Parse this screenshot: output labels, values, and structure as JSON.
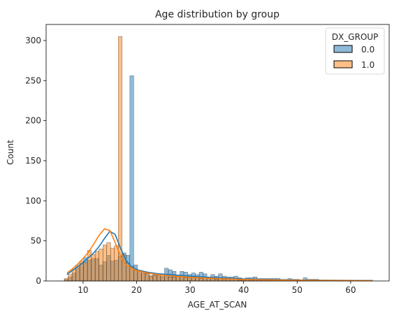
{
  "chart_data": {
    "type": "histogram",
    "title": "Age distribution by group",
    "xlabel": "AGE_AT_SCAN",
    "ylabel": "Count",
    "xlim": [
      3.1,
      67.2
    ],
    "ylim": [
      0,
      320
    ],
    "xticks": [
      10,
      20,
      30,
      40,
      50,
      60
    ],
    "yticks": [
      0,
      50,
      100,
      150,
      200,
      250,
      300
    ],
    "grid": false,
    "legend": {
      "title": "DX_GROUP",
      "placement": "top-right"
    },
    "bin_start": 6.5,
    "bin_width": 0.72,
    "series": [
      {
        "name": "0.0",
        "color": "#1f77b4",
        "fill": "#8fb9d9",
        "counts": [
          2,
          5,
          10,
          17,
          22,
          29,
          26,
          28,
          28,
          20,
          24,
          32,
          25,
          26,
          31,
          35,
          32,
          256,
          20,
          13,
          9,
          10,
          6,
          8,
          7,
          5,
          16,
          14,
          12,
          6,
          12,
          11,
          8,
          10,
          8,
          11,
          9,
          5,
          8,
          6,
          9,
          6,
          5,
          5,
          6,
          4,
          3,
          4,
          4,
          5,
          3,
          3,
          3,
          3,
          3,
          3,
          2,
          2,
          3,
          2,
          2,
          1,
          4,
          2,
          2,
          2,
          1,
          1,
          0,
          1,
          0,
          1,
          0,
          1,
          0,
          0,
          0,
          0,
          0,
          1,
          0
        ],
        "kde_x": [
          7,
          8,
          9,
          10,
          11,
          12,
          13,
          14,
          15,
          16,
          17,
          18,
          19,
          20,
          22,
          24,
          26,
          28,
          30,
          35,
          40,
          50,
          64
        ],
        "kde_y": [
          8,
          13,
          18,
          23,
          29,
          35,
          43,
          53,
          62,
          58,
          41,
          26,
          18,
          14,
          11,
          9,
          8,
          7,
          6,
          4,
          2.5,
          1.2,
          0.5
        ]
      },
      {
        "name": "1.0",
        "color": "#ff7f0e",
        "fill": "#ffbf87",
        "counts": [
          3,
          8,
          15,
          20,
          25,
          23,
          38,
          33,
          37,
          40,
          45,
          48,
          41,
          44,
          305,
          33,
          22,
          18,
          15,
          12,
          10,
          9,
          7,
          7,
          9,
          6,
          7,
          5,
          5,
          6,
          5,
          4,
          4,
          5,
          4,
          3,
          4,
          3,
          3,
          2,
          3,
          2,
          2,
          2,
          2,
          1,
          1,
          2,
          1,
          1,
          1,
          1,
          1,
          1,
          0,
          1,
          0,
          1,
          0,
          0,
          1,
          0,
          0,
          1,
          0,
          0,
          0,
          0,
          0,
          0,
          0,
          0,
          0,
          0,
          0,
          0,
          0,
          0,
          0,
          0,
          0
        ],
        "kde_x": [
          7,
          8,
          9,
          10,
          11,
          12,
          13,
          14,
          15,
          16,
          17,
          18,
          20,
          22,
          24,
          26,
          28,
          30,
          35,
          40,
          50,
          64
        ],
        "kde_y": [
          10,
          15,
          21,
          28,
          36,
          46,
          57,
          65,
          63,
          48,
          31,
          20,
          13,
          10,
          8,
          6.5,
          5.5,
          4.5,
          3,
          1.8,
          0.8,
          0.3
        ]
      }
    ]
  }
}
